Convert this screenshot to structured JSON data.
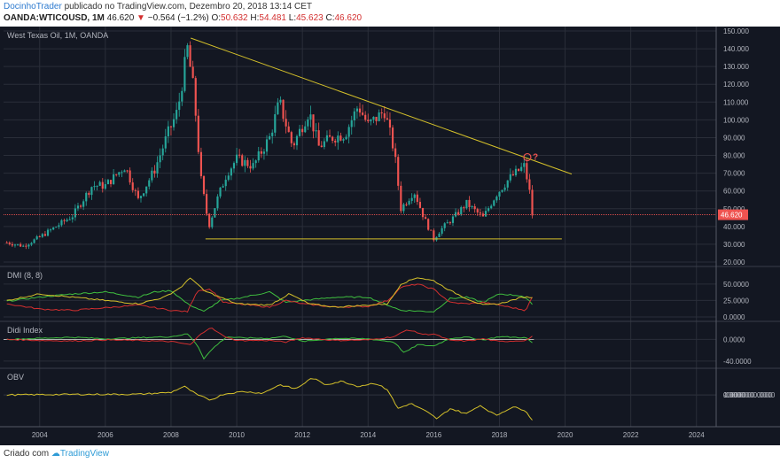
{
  "header": {
    "author": "DocinhoTrader",
    "published_text": "publicado no TradingView.com, Dezembro 20, 2018 13:14 CET",
    "symbol": "OANDA:WTICOUSD, 1M",
    "last": "46.620",
    "change": "−0.564 (−1.2%)",
    "o_label": "O:",
    "o_val": "50.632",
    "h_label": "H:",
    "h_val": "54.481",
    "l_label": "L:",
    "l_val": "45.623",
    "c_label": "C:",
    "c_val": "46.620"
  },
  "footer": {
    "credit_prefix": "Criado com",
    "brand": "TradingView"
  },
  "colors": {
    "background": "#131722",
    "grid": "#2a2e39",
    "up": "#26a69a",
    "down": "#ef5350",
    "trendline": "#d4c02a",
    "price_line": "#ef5350",
    "dmi_plus": "#3fbf3f",
    "dmi_minus": "#d32f2f",
    "dmi_adx": "#d4c02a",
    "obv": "#d4c02a",
    "text": "#b2b5be"
  },
  "chart_data": [
    {
      "type": "candlestick",
      "title": "West Texas Oil, 1M, OANDA",
      "ylim": [
        20,
        150
      ],
      "yticks": [
        "150.000",
        "140.000",
        "130.000",
        "120.000",
        "110.000",
        "100.000",
        "90.000",
        "80.000",
        "70.000",
        "60.000",
        "50.000",
        "40.000",
        "30.000",
        "20.000"
      ],
      "xticks": [
        "2004",
        "2006",
        "2008",
        "2010",
        "2012",
        "2014",
        "2016",
        "2018",
        "2020",
        "2022",
        "2024"
      ],
      "xlim": [
        2002.9,
        2024.6
      ],
      "last_price_label": "46.620",
      "last_price": 46.62,
      "annotation_text": "?",
      "trendline_upper": [
        [
          2008.6,
          146
        ],
        [
          2020.2,
          69.5
        ]
      ],
      "trendline_lower": [
        [
          2009.05,
          33
        ],
        [
          2019.9,
          33
        ]
      ],
      "price_anchors": [
        [
          2003.0,
          31
        ],
        [
          2003.5,
          29
        ],
        [
          2004.0,
          34
        ],
        [
          2004.5,
          40
        ],
        [
          2005.0,
          46
        ],
        [
          2005.6,
          63
        ],
        [
          2006.0,
          63
        ],
        [
          2006.6,
          74
        ],
        [
          2007.0,
          55
        ],
        [
          2007.5,
          72
        ],
        [
          2007.9,
          92
        ],
        [
          2008.2,
          105
        ],
        [
          2008.5,
          140
        ],
        [
          2008.7,
          115
        ],
        [
          2008.9,
          68
        ],
        [
          2009.15,
          40
        ],
        [
          2009.4,
          55
        ],
        [
          2009.7,
          70
        ],
        [
          2010.0,
          78
        ],
        [
          2010.5,
          74
        ],
        [
          2011.0,
          90
        ],
        [
          2011.3,
          110
        ],
        [
          2011.7,
          85
        ],
        [
          2012.2,
          105
        ],
        [
          2012.5,
          85
        ],
        [
          2012.9,
          90
        ],
        [
          2013.3,
          92
        ],
        [
          2013.7,
          108
        ],
        [
          2014.0,
          97
        ],
        [
          2014.5,
          105
        ],
        [
          2014.8,
          82
        ],
        [
          2015.0,
          50
        ],
        [
          2015.4,
          60
        ],
        [
          2015.7,
          45
        ],
        [
          2016.0,
          33
        ],
        [
          2016.2,
          38
        ],
        [
          2016.6,
          45
        ],
        [
          2017.0,
          53
        ],
        [
          2017.5,
          45
        ],
        [
          2017.9,
          58
        ],
        [
          2018.3,
          67
        ],
        [
          2018.75,
          74
        ],
        [
          2018.9,
          62
        ],
        [
          2019.0,
          46.6
        ]
      ]
    },
    {
      "type": "line",
      "title": "DMI (8, 8)",
      "ylim": [
        0,
        70
      ],
      "yticks": [
        "50.0000",
        "25.0000",
        "0.0000"
      ],
      "series": [
        {
          "name": "+DI",
          "anchors": [
            [
              2003,
              24
            ],
            [
              2004,
              30
            ],
            [
              2005,
              35
            ],
            [
              2006,
              38
            ],
            [
              2007,
              30
            ],
            [
              2007.5,
              38
            ],
            [
              2008,
              40
            ],
            [
              2008.5,
              20
            ],
            [
              2009,
              8
            ],
            [
              2009.5,
              25
            ],
            [
              2010,
              28
            ],
            [
              2011,
              38
            ],
            [
              2011.5,
              22
            ],
            [
              2012,
              25
            ],
            [
              2013,
              30
            ],
            [
              2014,
              30
            ],
            [
              2014.5,
              20
            ],
            [
              2015,
              10
            ],
            [
              2016,
              8
            ],
            [
              2016.5,
              28
            ],
            [
              2017,
              30
            ],
            [
              2017.5,
              22
            ],
            [
              2018,
              35
            ],
            [
              2018.7,
              32
            ],
            [
              2019,
              20
            ]
          ]
        },
        {
          "name": "-DI",
          "anchors": [
            [
              2003,
              20
            ],
            [
              2004,
              12
            ],
            [
              2005,
              10
            ],
            [
              2006,
              14
            ],
            [
              2007,
              18
            ],
            [
              2008,
              10
            ],
            [
              2008.5,
              8
            ],
            [
              2008.8,
              40
            ],
            [
              2009.2,
              42
            ],
            [
              2009.6,
              22
            ],
            [
              2010,
              20
            ],
            [
              2011,
              15
            ],
            [
              2011.5,
              25
            ],
            [
              2012,
              20
            ],
            [
              2013,
              15
            ],
            [
              2014,
              16
            ],
            [
              2014.6,
              25
            ],
            [
              2015,
              45
            ],
            [
              2015.5,
              50
            ],
            [
              2016,
              42
            ],
            [
              2016.5,
              22
            ],
            [
              2017,
              20
            ],
            [
              2017.5,
              22
            ],
            [
              2018,
              18
            ],
            [
              2018.8,
              10
            ],
            [
              2019,
              30
            ]
          ]
        },
        {
          "name": "ADX",
          "anchors": [
            [
              2003,
              25
            ],
            [
              2004,
              35
            ],
            [
              2005,
              30
            ],
            [
              2006,
              25
            ],
            [
              2007,
              20
            ],
            [
              2007.8,
              30
            ],
            [
              2008.3,
              45
            ],
            [
              2008.6,
              60
            ],
            [
              2009.0,
              40
            ],
            [
              2009.5,
              30
            ],
            [
              2010,
              20
            ],
            [
              2011,
              18
            ],
            [
              2011.6,
              35
            ],
            [
              2012.2,
              20
            ],
            [
              2013,
              15
            ],
            [
              2014,
              18
            ],
            [
              2014.6,
              20
            ],
            [
              2015,
              50
            ],
            [
              2015.5,
              60
            ],
            [
              2016,
              55
            ],
            [
              2016.5,
              40
            ],
            [
              2017,
              28
            ],
            [
              2017.5,
              18
            ],
            [
              2018,
              20
            ],
            [
              2018.7,
              30
            ],
            [
              2019,
              30
            ]
          ]
        }
      ]
    },
    {
      "type": "line",
      "title": "Didi Index",
      "ylim": [
        -45,
        25
      ],
      "yticks": [
        "0.0000",
        "-40.0000"
      ],
      "reference": 0,
      "series": [
        {
          "name": "short",
          "anchors": [
            [
              2003,
              0
            ],
            [
              2004,
              2
            ],
            [
              2005,
              4
            ],
            [
              2006,
              1
            ],
            [
              2007,
              3
            ],
            [
              2008,
              5
            ],
            [
              2008.5,
              10
            ],
            [
              2008.8,
              -10
            ],
            [
              2009.0,
              -35
            ],
            [
              2009.3,
              -15
            ],
            [
              2009.7,
              5
            ],
            [
              2010,
              3
            ],
            [
              2011,
              2
            ],
            [
              2011.5,
              6
            ],
            [
              2012,
              -4
            ],
            [
              2013,
              2
            ],
            [
              2014,
              1
            ],
            [
              2014.8,
              -5
            ],
            [
              2015.1,
              -25
            ],
            [
              2015.5,
              -10
            ],
            [
              2016,
              -12
            ],
            [
              2016.5,
              2
            ],
            [
              2017,
              4
            ],
            [
              2017.5,
              -1
            ],
            [
              2018,
              5
            ],
            [
              2018.8,
              3
            ],
            [
              2019,
              -6
            ]
          ]
        },
        {
          "name": "long",
          "anchors": [
            [
              2003,
              0
            ],
            [
              2004,
              -2
            ],
            [
              2005,
              -3
            ],
            [
              2006,
              -1
            ],
            [
              2007,
              -2
            ],
            [
              2008,
              -4
            ],
            [
              2008.6,
              -10
            ],
            [
              2008.9,
              10
            ],
            [
              2009.2,
              22
            ],
            [
              2009.6,
              6
            ],
            [
              2010,
              -2
            ],
            [
              2011,
              -2
            ],
            [
              2011.5,
              -5
            ],
            [
              2012,
              3
            ],
            [
              2013,
              -2
            ],
            [
              2014,
              -1
            ],
            [
              2014.8,
              5
            ],
            [
              2015.2,
              18
            ],
            [
              2015.7,
              9
            ],
            [
              2016,
              10
            ],
            [
              2016.5,
              -2
            ],
            [
              2017,
              -3
            ],
            [
              2017.5,
              1
            ],
            [
              2018,
              -4
            ],
            [
              2018.8,
              -2
            ],
            [
              2019,
              5
            ]
          ]
        }
      ]
    },
    {
      "type": "line",
      "title": "OBV",
      "ylim": [
        -16000000000,
        13000000000
      ],
      "yticks": [
        "10000000.0000",
        "0.0000",
        "-10000000.0000"
      ],
      "series": [
        {
          "name": "OBV",
          "anchors": [
            [
              2003,
              0
            ],
            [
              2005,
              300000000
            ],
            [
              2007,
              400000000
            ],
            [
              2008.0,
              1500000000
            ],
            [
              2008.4,
              5000000000
            ],
            [
              2008.8,
              0
            ],
            [
              2009.2,
              -3000000000
            ],
            [
              2009.6,
              500000000
            ],
            [
              2010.2,
              2000000000
            ],
            [
              2010.8,
              1000000000
            ],
            [
              2011.3,
              6000000000
            ],
            [
              2011.8,
              3500000000
            ],
            [
              2012.3,
              10000000000
            ],
            [
              2012.7,
              6000000000
            ],
            [
              2013.2,
              8000000000
            ],
            [
              2013.7,
              5000000000
            ],
            [
              2014.2,
              7000000000
            ],
            [
              2014.6,
              3000000000
            ],
            [
              2014.9,
              -8000000000
            ],
            [
              2015.3,
              -5000000000
            ],
            [
              2015.8,
              -10000000000
            ],
            [
              2016.1,
              -14000000000
            ],
            [
              2016.5,
              -8000000000
            ],
            [
              2017.0,
              -11000000000
            ],
            [
              2017.4,
              -6000000000
            ],
            [
              2017.9,
              -12000000000
            ],
            [
              2018.4,
              -7000000000
            ],
            [
              2018.8,
              -9000000000
            ],
            [
              2019.0,
              -15000000000
            ]
          ]
        }
      ]
    }
  ]
}
